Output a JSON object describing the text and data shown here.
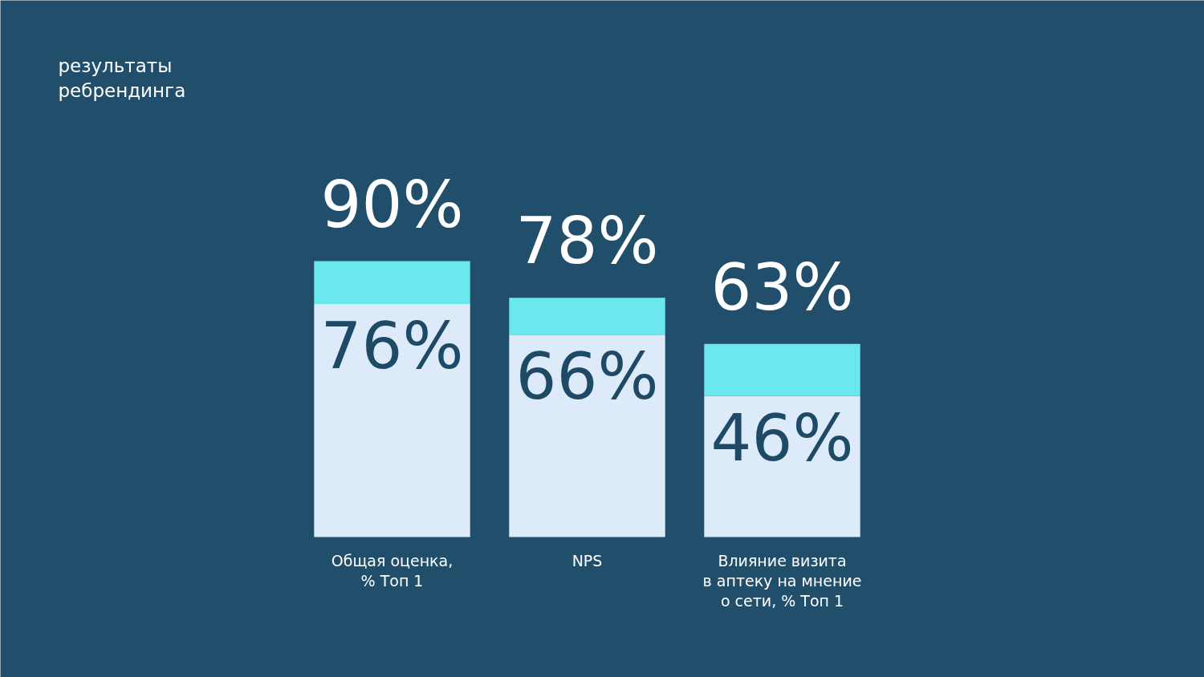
{
  "chart_data": {
    "type": "bar",
    "title": "результаты\nребрендинга",
    "stacked": true,
    "categories": [
      "Общая оценка,\n% Топ 1",
      "NPS",
      "Влияние визита\nв аптеку на мнение\nо сети, % Топ 1"
    ],
    "series": [
      {
        "color": "#dceafa",
        "values": [
          76,
          66,
          46
        ],
        "value_labels": [
          "76%",
          "66%",
          "46%"
        ]
      },
      {
        "color": "#6ae8ee",
        "values": [
          14,
          12,
          17
        ]
      }
    ],
    "totals": [
      "90%",
      "78%",
      "63%"
    ],
    "grid": false
  }
}
